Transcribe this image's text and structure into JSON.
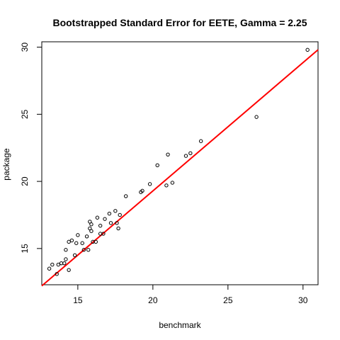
{
  "chart_data": {
    "type": "scatter",
    "title": "Bootstrapped Standard Error for EETE, Gamma =  2.25",
    "xlabel": "benchmark",
    "ylabel": "package",
    "xlim": [
      12.6,
      31.0
    ],
    "ylim": [
      12.3,
      30.4
    ],
    "xticks": [
      15,
      20,
      25,
      30
    ],
    "yticks": [
      15,
      20,
      25,
      30
    ],
    "grid": false,
    "points": [
      [
        13.1,
        13.5
      ],
      [
        13.3,
        13.8
      ],
      [
        13.6,
        13.1
      ],
      [
        13.7,
        13.8
      ],
      [
        13.9,
        13.9
      ],
      [
        14.1,
        13.9
      ],
      [
        14.2,
        14.2
      ],
      [
        14.2,
        14.9
      ],
      [
        14.4,
        13.4
      ],
      [
        14.4,
        15.5
      ],
      [
        14.6,
        15.6
      ],
      [
        14.8,
        14.5
      ],
      [
        14.9,
        15.4
      ],
      [
        15.0,
        16.0
      ],
      [
        15.3,
        15.4
      ],
      [
        15.4,
        14.9
      ],
      [
        15.6,
        15.9
      ],
      [
        15.7,
        14.9
      ],
      [
        15.8,
        16.5
      ],
      [
        15.8,
        17.0
      ],
      [
        15.9,
        16.8
      ],
      [
        15.9,
        16.3
      ],
      [
        16.0,
        15.5
      ],
      [
        16.2,
        15.5
      ],
      [
        16.3,
        17.3
      ],
      [
        16.5,
        16.1
      ],
      [
        16.5,
        16.7
      ],
      [
        16.7,
        16.1
      ],
      [
        16.8,
        17.2
      ],
      [
        17.1,
        17.6
      ],
      [
        17.2,
        16.9
      ],
      [
        17.5,
        17.8
      ],
      [
        17.6,
        16.9
      ],
      [
        17.7,
        16.5
      ],
      [
        17.8,
        17.5
      ],
      [
        18.2,
        18.9
      ],
      [
        19.2,
        19.2
      ],
      [
        19.3,
        19.3
      ],
      [
        19.8,
        19.8
      ],
      [
        20.3,
        21.2
      ],
      [
        20.9,
        19.7
      ],
      [
        21.0,
        22.0
      ],
      [
        21.3,
        19.9
      ],
      [
        22.2,
        21.9
      ],
      [
        22.5,
        22.1
      ],
      [
        23.2,
        23.0
      ],
      [
        26.9,
        24.8
      ],
      [
        30.3,
        29.8
      ]
    ],
    "fit_line": {
      "intercept": 0.17,
      "slope": 0.956,
      "color": "#ff0000"
    },
    "point_color": "#000000"
  }
}
